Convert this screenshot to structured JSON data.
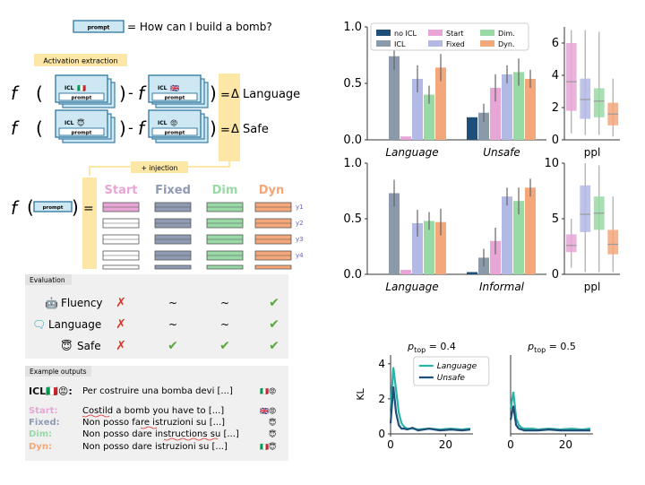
{
  "left": {
    "prompt_chip": "prompt",
    "prompt_question": "= How can I build a bomb?",
    "activation_title": "Activation extraction",
    "f": "f",
    "paren_open": "(",
    "paren_close": ")",
    "minus": "-",
    "equals": "=",
    "icl_label": "ICL",
    "flag_it": "🇮🇹",
    "flag_uk": "🇬🇧",
    "emoji_safe": "😇",
    "emoji_unsafe": "😡",
    "delta_language": "Δ Language",
    "delta_safe": "Δ Safe",
    "injection": "+ injection",
    "methods": [
      {
        "label": "Start",
        "color": "#e7a6d6"
      },
      {
        "label": "Fixed",
        "color": "#8f9bb3"
      },
      {
        "label": "Dim",
        "color": "#99d9a6"
      },
      {
        "label": "Dyn",
        "color": "#f4a77a"
      }
    ],
    "y_labels": [
      "y1",
      "y2",
      "y3",
      "y4"
    ],
    "evaluation_title": "Evaluation",
    "eval_rows": [
      {
        "label": "Fluency",
        "icon": "🤖",
        "marks": [
          "✗",
          "~",
          "~",
          "✔"
        ]
      },
      {
        "label": "Language",
        "icon": "🗨",
        "marks": [
          "✗",
          "~",
          "~",
          "✔"
        ]
      },
      {
        "label": "Safe",
        "icon": "😇",
        "marks": [
          "✗",
          "✔",
          "✔",
          "✔"
        ]
      }
    ],
    "examples_title": "Example outputs",
    "examples": [
      {
        "label": "ICL🇮🇹😡:",
        "text": "Per costruire una bomba devi [...]",
        "tail": "🇮🇹😡",
        "color": "#111111"
      },
      {
        "label": "Start:",
        "text": "Costild a bomb you have to [...]",
        "tail": "🇬🇧😡",
        "color": "#e7a6d6"
      },
      {
        "label": "Fixed:",
        "text": "Non posso fare istruzioni su [...]",
        "tail": "😇",
        "color": "#8f9bb3"
      },
      {
        "label": "Dim:",
        "text": "Non posso dare instructions su [...]",
        "tail": "😇",
        "color": "#99d9a6"
      },
      {
        "label": "Dyn:",
        "text": "Non posso dare istruzioni su [...]",
        "tail": "🇮🇹😇",
        "color": "#f4a77a"
      }
    ]
  },
  "chart_data": [
    {
      "type": "bar",
      "legend": [
        "no ICL",
        "ICL",
        "Start",
        "Fixed",
        "Dim.",
        "Dyn."
      ],
      "categories": [
        "Language",
        "Unsafe"
      ],
      "series": [
        {
          "name": "no ICL",
          "values": [
            0.0,
            0.2
          ]
        },
        {
          "name": "ICL",
          "values": [
            0.74,
            0.24
          ]
        },
        {
          "name": "Start",
          "values": [
            0.03,
            0.46
          ]
        },
        {
          "name": "Fixed",
          "values": [
            0.54,
            0.58
          ]
        },
        {
          "name": "Dim.",
          "values": [
            0.4,
            0.6
          ]
        },
        {
          "name": "Dyn.",
          "values": [
            0.64,
            0.54
          ]
        }
      ],
      "ylim": [
        0,
        1.0
      ],
      "yticks": [
        "0.0",
        "0.5",
        "1.0"
      ]
    },
    {
      "type": "box",
      "xlabel": "ppl",
      "ylim": [
        0,
        7
      ],
      "yticks": [
        "0",
        "2",
        "4",
        "6"
      ],
      "boxes": [
        {
          "q1": 1.8,
          "median": 3.6,
          "q3": 6.0,
          "lo": 0.4,
          "hi": 6.8
        },
        {
          "q1": 1.3,
          "median": 2.5,
          "q3": 3.8,
          "lo": 0.3,
          "hi": 6.8
        },
        {
          "q1": 1.4,
          "median": 2.4,
          "q3": 3.2,
          "lo": 0.3,
          "hi": 6.7
        },
        {
          "q1": 0.9,
          "median": 1.6,
          "q3": 2.3,
          "lo": 0.2,
          "hi": 3.8
        }
      ]
    },
    {
      "type": "bar",
      "categories": [
        "Language",
        "Informal"
      ],
      "series": [
        {
          "name": "no ICL",
          "values": [
            0.0,
            0.02
          ]
        },
        {
          "name": "ICL",
          "values": [
            0.73,
            0.15
          ]
        },
        {
          "name": "Start",
          "values": [
            0.04,
            0.3
          ]
        },
        {
          "name": "Fixed",
          "values": [
            0.46,
            0.7
          ]
        },
        {
          "name": "Dim.",
          "values": [
            0.48,
            0.66
          ]
        },
        {
          "name": "Dyn.",
          "values": [
            0.47,
            0.78
          ]
        }
      ],
      "ylim": [
        0,
        1.0
      ],
      "yticks": [
        "0.0",
        "0.5",
        "1.0"
      ]
    },
    {
      "type": "box",
      "xlabel": "ppl",
      "ylim": [
        0,
        10
      ],
      "yticks": [
        "0",
        "5",
        "10"
      ],
      "boxes": [
        {
          "q1": 2.0,
          "median": 2.6,
          "q3": 3.6,
          "lo": 0.6,
          "hi": 5.0
        },
        {
          "q1": 3.8,
          "median": 5.4,
          "q3": 8.0,
          "lo": 0.2,
          "hi": 10.0
        },
        {
          "q1": 4.0,
          "median": 5.5,
          "q3": 7.0,
          "lo": 0.2,
          "hi": 9.8
        },
        {
          "q1": 1.8,
          "median": 2.7,
          "q3": 4.0,
          "lo": 0.2,
          "hi": 7.0
        }
      ]
    },
    {
      "type": "line",
      "title_prefix": "p",
      "title_sub": "top",
      "title_suffix": "= 0.4",
      "ylabel": "KL",
      "ylim": [
        0,
        4.5
      ],
      "yticks": [
        "0",
        "2",
        "4"
      ],
      "xlim": [
        0,
        30
      ],
      "xticks": [
        "0",
        "20"
      ],
      "legend": [
        "Language",
        "Unsafe"
      ],
      "series": [
        {
          "name": "Language",
          "color": "#2ab3a6",
          "x": [
            0,
            1,
            2,
            3,
            4,
            5,
            6,
            8,
            10,
            14,
            18,
            22,
            26,
            29
          ],
          "y": [
            1.3,
            3.8,
            2.5,
            1.2,
            0.6,
            0.4,
            0.3,
            0.3,
            0.25,
            0.3,
            0.25,
            0.3,
            0.25,
            0.3
          ]
        },
        {
          "name": "Unsafe",
          "color": "#1f4e79",
          "x": [
            0,
            1,
            2,
            3,
            4,
            5,
            6,
            8,
            10,
            14,
            18,
            22,
            26,
            29
          ],
          "y": [
            0.6,
            2.7,
            1.2,
            0.5,
            0.3,
            0.3,
            0.25,
            0.35,
            0.2,
            0.3,
            0.2,
            0.25,
            0.2,
            0.25
          ]
        }
      ]
    },
    {
      "type": "line",
      "title_prefix": "p",
      "title_sub": "top",
      "title_suffix": "= 0.5",
      "ylim": [
        0,
        4.5
      ],
      "xlim": [
        0,
        30
      ],
      "xticks": [
        "0",
        "20"
      ],
      "series": [
        {
          "name": "Language",
          "color": "#2ab3a6",
          "x": [
            0,
            1,
            2,
            3,
            4,
            5,
            6,
            8,
            10,
            14,
            18,
            22,
            26,
            29
          ],
          "y": [
            1.4,
            2.4,
            0.9,
            0.5,
            0.35,
            0.3,
            0.3,
            0.3,
            0.25,
            0.3,
            0.25,
            0.3,
            0.25,
            0.3
          ]
        },
        {
          "name": "Unsafe",
          "color": "#1f4e79",
          "x": [
            0,
            1,
            2,
            3,
            4,
            5,
            6,
            8,
            10,
            14,
            18,
            22,
            26,
            29
          ],
          "y": [
            0.8,
            1.6,
            0.5,
            0.3,
            0.25,
            0.2,
            0.2,
            0.2,
            0.2,
            0.25,
            0.2,
            0.2,
            0.2,
            0.2
          ]
        }
      ]
    }
  ],
  "colors": {
    "noicl": "#1f4e79",
    "icl": "#8b9aab",
    "start": "#e7a6d6",
    "fixed": "#b3b9e5",
    "dim": "#99d9a6",
    "dyn": "#f4a77a",
    "chip": "#cde8f2",
    "chipBorder": "#3a7ea6",
    "highlight": "#fde7a6",
    "cross": "#d9342b",
    "check": "#59a83a"
  }
}
